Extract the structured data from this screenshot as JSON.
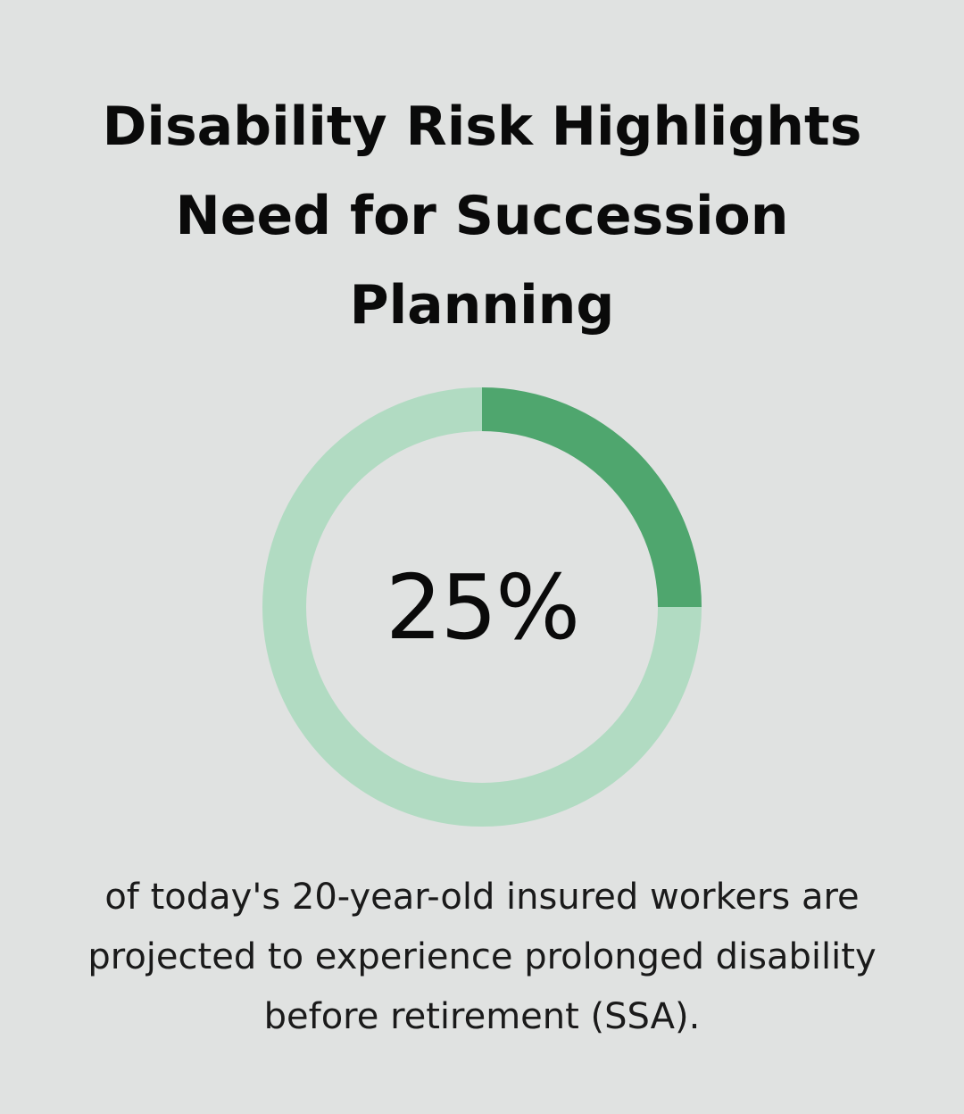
{
  "title": "Disability Risk Highlights Need for Succession Planning",
  "caption": "of today's 20-year-old insured workers are projected to experience prolonged disability before retirement (SSA).",
  "colors": {
    "background": "#e0e2e1",
    "highlight": "#4fa66e",
    "remainder": "#b1dbc2",
    "text": "#0a0a0a"
  },
  "chart_data": {
    "type": "pie",
    "style": "donut",
    "value_label": "25%",
    "slices": [
      {
        "value": 25,
        "color": "#4fa66e"
      },
      {
        "value": 75,
        "color": "#b1dbc2"
      }
    ]
  }
}
